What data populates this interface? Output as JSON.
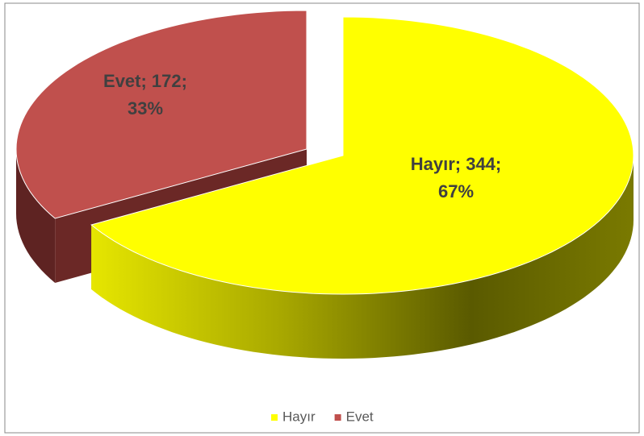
{
  "chart_data": {
    "type": "pie",
    "categories": [
      "Hayır",
      "Evet"
    ],
    "values": [
      344,
      172
    ],
    "value_labels": [
      [
        "Hayır; 344;",
        "67%"
      ],
      [
        "Evet; 172;",
        "33%"
      ]
    ],
    "colors": [
      "#ffff00",
      "#c0504d"
    ],
    "legend": "bottom"
  }
}
